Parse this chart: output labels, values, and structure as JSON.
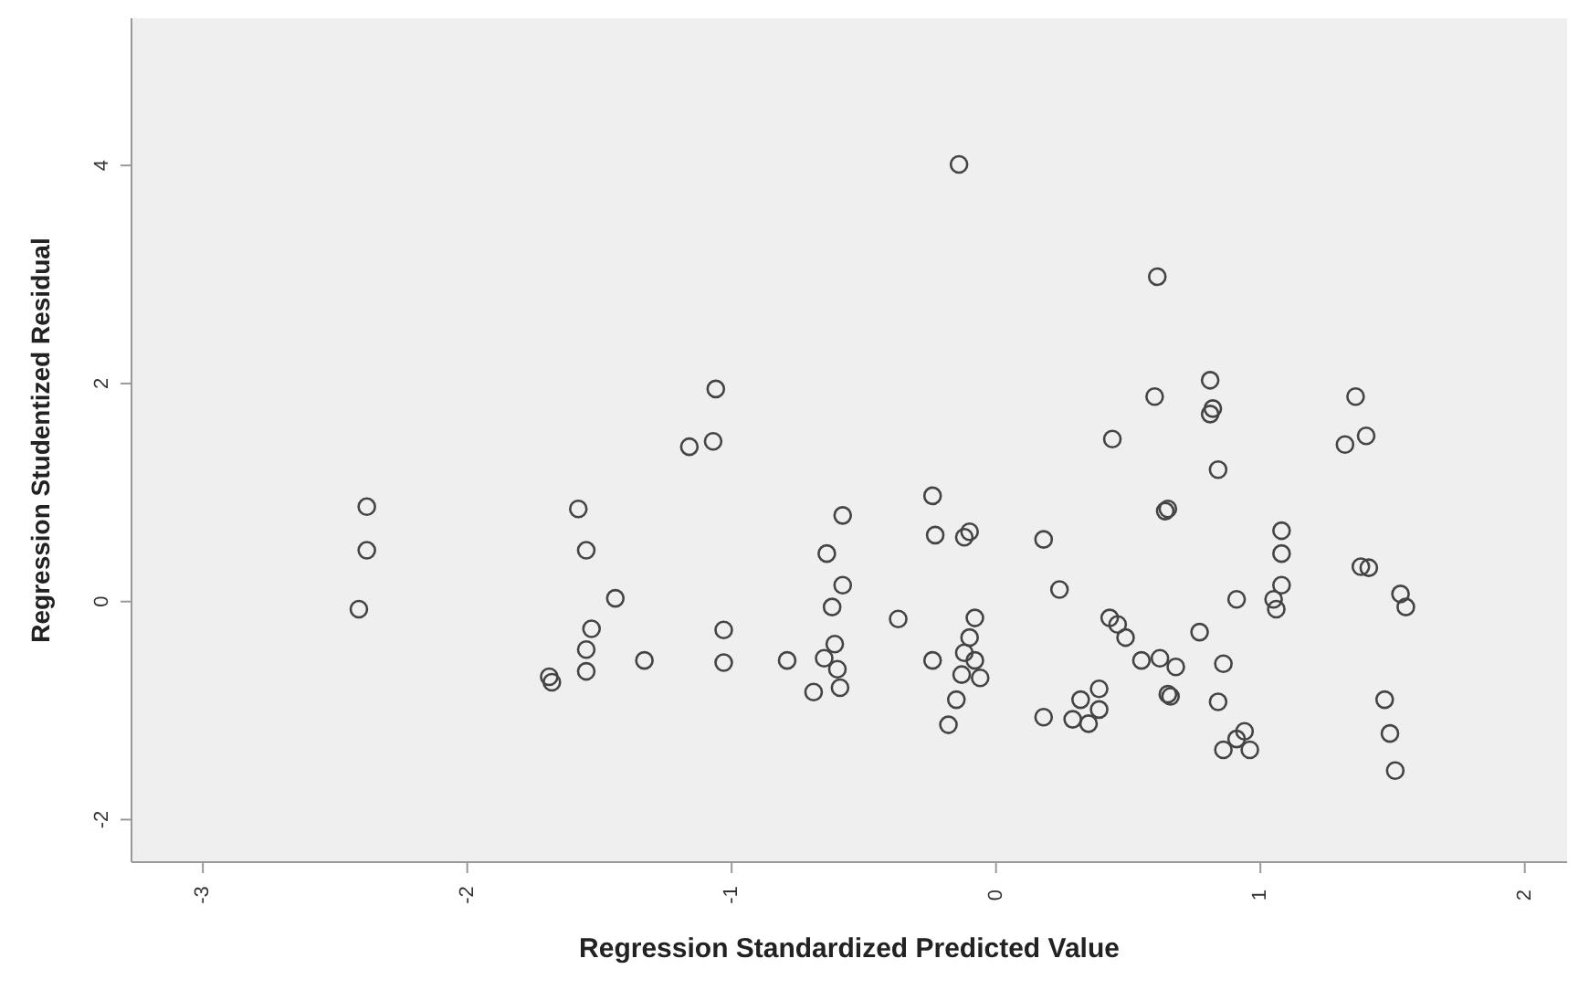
{
  "chart_data": {
    "type": "scatter",
    "xlabel": "Regression Standardized Predicted Value",
    "ylabel": "Regression Studentized Residual",
    "xlim": [
      -3.27,
      2.16
    ],
    "ylim": [
      -2.39,
      5.35
    ],
    "xticks": [
      -3,
      -2,
      -1,
      0,
      1,
      2
    ],
    "yticks": [
      -2,
      0,
      2,
      4
    ],
    "grid": false,
    "legend": false,
    "marker": "circle",
    "series": [
      {
        "color": "#444444",
        "x": [
          -2.38,
          -2.38,
          -2.41,
          -1.69,
          -1.68,
          -1.58,
          -1.55,
          -1.44,
          -1.53,
          -1.55,
          -1.55,
          -1.33,
          -1.16,
          -1.07,
          -1.06,
          -1.03,
          -1.03,
          -0.79,
          -0.69,
          -0.59,
          -0.6,
          -0.61,
          -0.65,
          -0.62,
          -0.58,
          -0.64,
          -0.58,
          -0.37,
          -0.14,
          -0.24,
          -0.23,
          -0.12,
          -0.1,
          -0.08,
          -0.24,
          -0.1,
          -0.12,
          -0.08,
          -0.13,
          -0.06,
          -0.15,
          -0.18,
          0.18,
          0.18,
          0.61,
          0.6,
          0.81,
          0.81,
          0.82,
          0.44,
          0.84,
          0.64,
          0.65,
          1.36,
          1.32,
          1.4,
          0.24,
          1.08,
          1.08,
          1.08,
          1.05,
          1.06,
          1.41,
          1.38,
          1.53,
          1.55,
          0.91,
          0.43,
          0.46,
          0.49,
          0.77,
          0.55,
          0.62,
          0.68,
          0.86,
          0.65,
          0.66,
          0.84,
          1.47,
          1.49,
          1.51,
          0.39,
          0.32,
          0.39,
          0.29,
          0.35,
          0.94,
          0.91,
          0.86,
          0.96
        ],
        "values": [
          0.87,
          0.47,
          -0.07,
          -0.69,
          -0.74,
          0.85,
          0.47,
          0.03,
          -0.25,
          -0.44,
          -0.64,
          -0.54,
          1.42,
          1.47,
          1.95,
          -0.26,
          -0.56,
          -0.54,
          -0.83,
          -0.79,
          -0.62,
          -0.39,
          -0.52,
          -0.05,
          0.15,
          0.44,
          0.79,
          -0.16,
          4.01,
          0.97,
          0.61,
          0.59,
          0.64,
          -0.15,
          -0.54,
          -0.33,
          -0.47,
          -0.54,
          -0.67,
          -0.7,
          -0.9,
          -1.13,
          0.57,
          -1.06,
          2.98,
          1.88,
          2.03,
          1.72,
          1.77,
          1.49,
          1.21,
          0.83,
          0.85,
          1.88,
          1.44,
          1.52,
          0.11,
          0.65,
          0.44,
          0.15,
          0.02,
          -0.07,
          0.31,
          0.32,
          0.07,
          -0.05,
          0.02,
          -0.15,
          -0.21,
          -0.33,
          -0.28,
          -0.54,
          -0.52,
          -0.6,
          -0.57,
          -0.85,
          -0.87,
          -0.92,
          -0.9,
          -1.21,
          -1.55,
          -0.8,
          -0.9,
          -0.99,
          -1.08,
          -1.12,
          -1.19,
          -1.26,
          -1.36,
          -1.36
        ]
      }
    ]
  }
}
